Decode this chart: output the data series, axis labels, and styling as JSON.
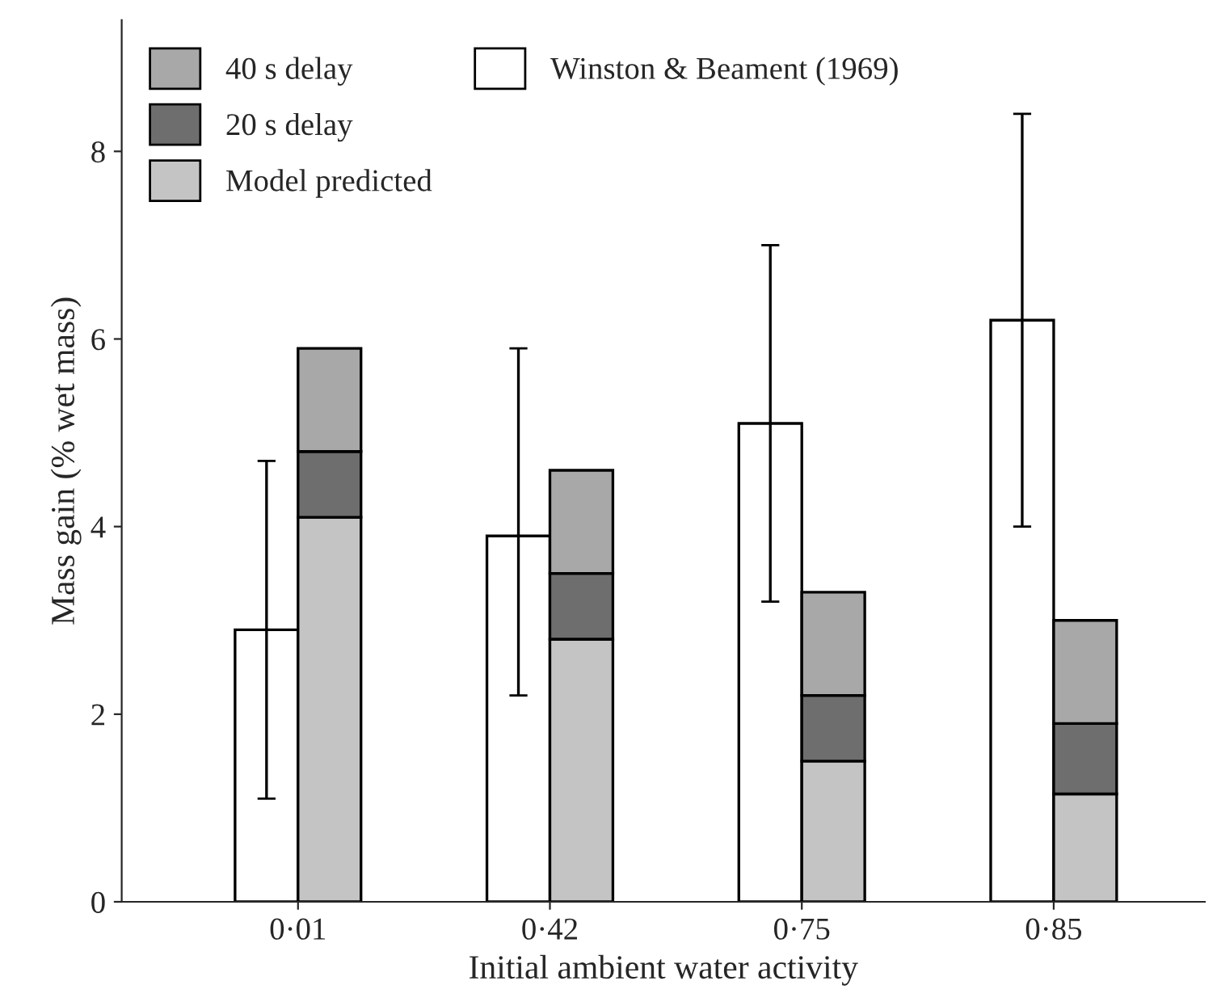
{
  "chart_data": {
    "type": "bar",
    "xlabel": "Initial ambient water activity",
    "ylabel": "Mass gain (% wet mass)",
    "categories": [
      "0·01",
      "0·42",
      "0·75",
      "0·85"
    ],
    "series": [
      {
        "name": "Winston & Beament (1969)",
        "color": "#ffffff",
        "values": [
          2.9,
          3.9,
          5.1,
          6.2
        ],
        "errors": [
          [
            1.1,
            4.7
          ],
          [
            2.2,
            5.9
          ],
          [
            3.2,
            7.0
          ],
          [
            4.0,
            8.4
          ]
        ]
      },
      {
        "name": "Model predicted",
        "color": "#c4c4c4",
        "base": [
          0,
          0,
          0,
          0
        ],
        "values": [
          4.1,
          2.8,
          1.5,
          1.15
        ]
      },
      {
        "name": "20 s delay",
        "color": "#6e6e6e",
        "base": [
          4.1,
          2.8,
          1.5,
          1.15
        ],
        "values": [
          0.7,
          0.7,
          0.7,
          0.75
        ]
      },
      {
        "name": "40 s delay",
        "color": "#a8a8a8",
        "base": [
          4.8,
          3.5,
          2.2,
          1.9
        ],
        "values": [
          1.1,
          1.1,
          1.1,
          1.1
        ]
      }
    ],
    "ylim": [
      0,
      9.4
    ],
    "yticks": [
      0,
      2,
      4,
      6,
      8
    ],
    "grid": false,
    "legend": "top left"
  }
}
